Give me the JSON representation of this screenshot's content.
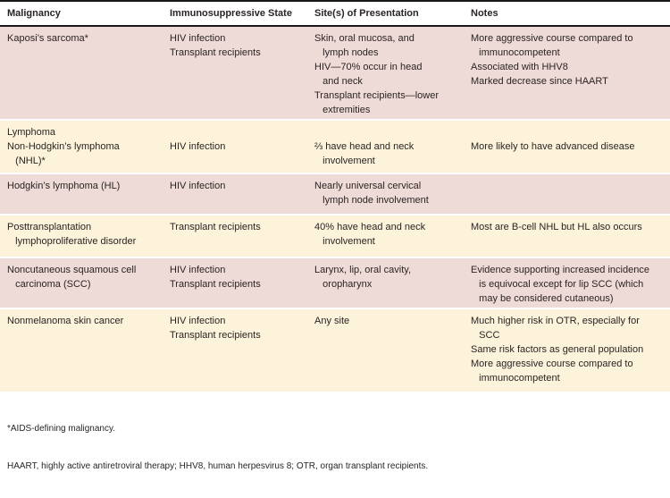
{
  "table": {
    "columns": [
      {
        "label": "Malignancy"
      },
      {
        "label": "Immunosuppressive State"
      },
      {
        "label": "Site(s) of Presentation"
      },
      {
        "label": "Notes"
      }
    ],
    "rows": [
      {
        "malignancy": "Kaposi’s sarcoma*",
        "state": "HIV infection\nTransplant recipients",
        "sites": "Skin, oral mucosa, and\n   lymph nodes\nHIV—70% occur in head\n   and neck\nTransplant recipients—lower\n   extremities",
        "notes": "More aggressive course compared to\n   immunocompetent\nAssociated with HHV8\nMarked decrease since HAART"
      },
      {
        "malignancy": "Lymphoma\nNon-Hodgkin’s lymphoma\n   (NHL)*",
        "state": "\nHIV infection",
        "sites": "\n⅔ have head and neck\n   involvement",
        "notes": "\nMore likely to have advanced disease"
      },
      {
        "malignancy": "Hodgkin’s lymphoma (HL)",
        "state": "HIV infection",
        "sites": "Nearly universal cervical\n   lymph node involvement",
        "notes": ""
      },
      {
        "malignancy": "Posttransplantation\n   lymphoproliferative disorder",
        "state": "Transplant recipients",
        "sites": "40% have head and neck\n   involvement",
        "notes": "Most are B-cell NHL but HL also occurs"
      },
      {
        "malignancy": "Noncutaneous squamous cell\n   carcinoma (SCC)",
        "state": "HIV infection\nTransplant recipients",
        "sites": "Larynx, lip, oral cavity,\n   oropharynx",
        "notes": "Evidence supporting increased incidence\n   is equivocal except for lip SCC (which\n   may be considered cutaneous)"
      },
      {
        "malignancy": "Nonmelanoma skin cancer",
        "state": "HIV infection\nTransplant recipients",
        "sites": "Any site",
        "notes": "Much higher risk in OTR, especially for\n   SCC\nSame risk factors as general population\nMore aggressive course compared to\n   immunocompetent"
      }
    ]
  },
  "footnotes": [
    "*AIDS-defining malignancy.",
    "HAART, highly active antiretroviral therapy; HHV8, human herpesvirus 8; OTR, organ transplant recipients."
  ],
  "colors": {
    "row_pink": "#eedad7",
    "row_cream": "#fcf3da",
    "border": "#1a1716",
    "text": "#2a2424"
  }
}
